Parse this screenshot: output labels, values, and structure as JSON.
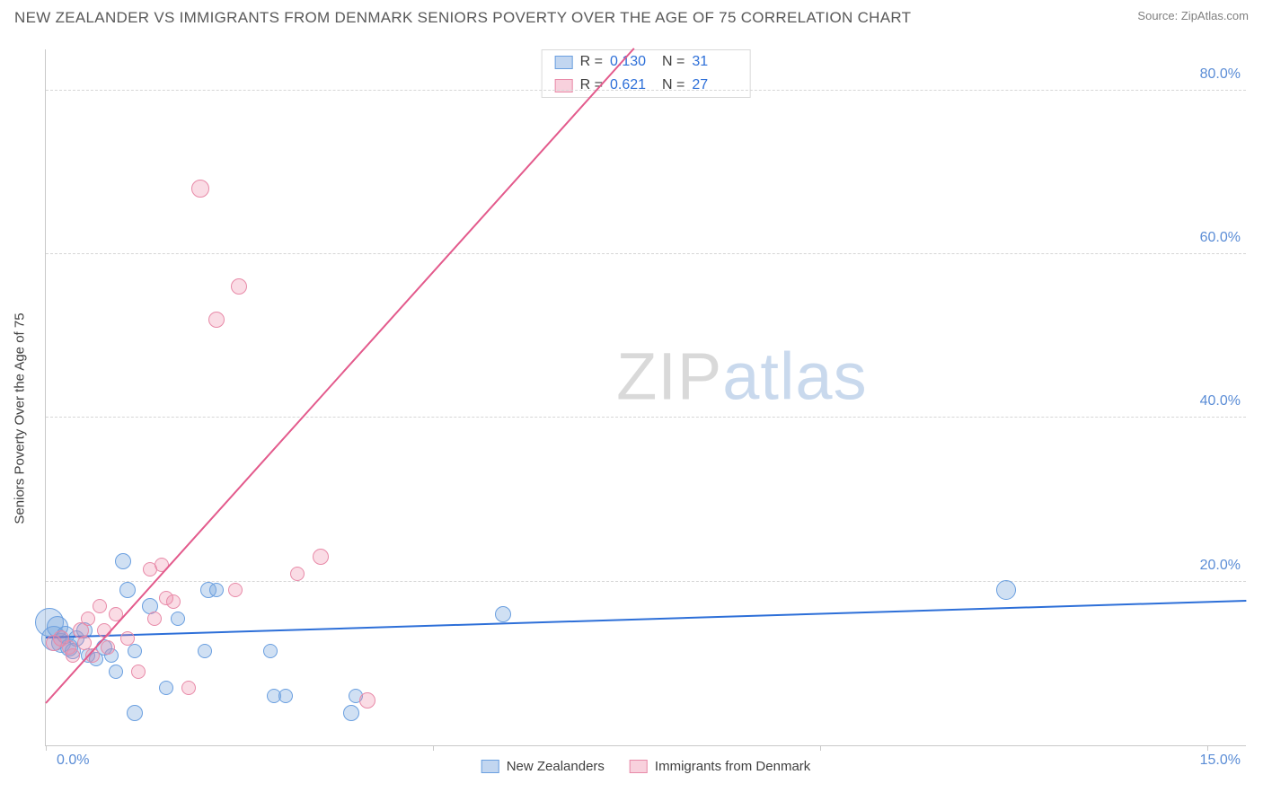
{
  "title": "NEW ZEALANDER VS IMMIGRANTS FROM DENMARK SENIORS POVERTY OVER THE AGE OF 75 CORRELATION CHART",
  "source_label": "Source:",
  "source_name": "ZipAtlas.com",
  "y_axis_label": "Seniors Poverty Over the Age of 75",
  "watermark_a": "ZIP",
  "watermark_b": "atlas",
  "chart": {
    "type": "scatter",
    "xlim": [
      0,
      15.5
    ],
    "ylim": [
      0,
      85
    ],
    "x_ticks": [
      0,
      5,
      10,
      15
    ],
    "x_tick_labels": [
      "0.0%",
      "",
      "",
      "15.0%"
    ],
    "y_grid": [
      20,
      40,
      60,
      80
    ],
    "y_tick_labels": [
      "20.0%",
      "40.0%",
      "60.0%",
      "80.0%"
    ],
    "grid_color": "#d6d6d6",
    "axis_color": "#c9c9c9",
    "tick_label_color": "#5b8dd6",
    "background_color": "#ffffff"
  },
  "series": [
    {
      "key": "nz",
      "label": "New Zealanders",
      "fill": "rgba(120,165,222,0.35)",
      "stroke": "#6a9fe0",
      "trend_color": "#2d6fd8",
      "trend": {
        "x1": 0,
        "y1": 13.0,
        "x2": 15.5,
        "y2": 17.5
      },
      "r_value": "0.130",
      "n_value": "31",
      "points": [
        {
          "x": 0.05,
          "y": 15.0,
          "r": 16
        },
        {
          "x": 0.1,
          "y": 13.0,
          "r": 14
        },
        {
          "x": 0.15,
          "y": 14.5,
          "r": 12
        },
        {
          "x": 0.2,
          "y": 12.5,
          "r": 11
        },
        {
          "x": 0.25,
          "y": 13.5,
          "r": 10
        },
        {
          "x": 0.3,
          "y": 12.0,
          "r": 10
        },
        {
          "x": 0.35,
          "y": 11.5,
          "r": 9
        },
        {
          "x": 0.4,
          "y": 13.0,
          "r": 9
        },
        {
          "x": 0.5,
          "y": 14.0,
          "r": 9
        },
        {
          "x": 0.55,
          "y": 11.0,
          "r": 8
        },
        {
          "x": 0.65,
          "y": 10.5,
          "r": 8
        },
        {
          "x": 0.75,
          "y": 12.0,
          "r": 9
        },
        {
          "x": 0.85,
          "y": 11.0,
          "r": 8
        },
        {
          "x": 0.9,
          "y": 9.0,
          "r": 8
        },
        {
          "x": 1.0,
          "y": 22.5,
          "r": 9
        },
        {
          "x": 1.05,
          "y": 19.0,
          "r": 9
        },
        {
          "x": 1.15,
          "y": 11.5,
          "r": 8
        },
        {
          "x": 1.15,
          "y": 4.0,
          "r": 9
        },
        {
          "x": 1.35,
          "y": 17.0,
          "r": 9
        },
        {
          "x": 1.55,
          "y": 7.0,
          "r": 8
        },
        {
          "x": 1.7,
          "y": 15.5,
          "r": 8
        },
        {
          "x": 2.1,
          "y": 19.0,
          "r": 9
        },
        {
          "x": 2.05,
          "y": 11.5,
          "r": 8
        },
        {
          "x": 2.2,
          "y": 19.0,
          "r": 8
        },
        {
          "x": 2.9,
          "y": 11.5,
          "r": 8
        },
        {
          "x": 2.95,
          "y": 6.0,
          "r": 8
        },
        {
          "x": 3.1,
          "y": 6.0,
          "r": 8
        },
        {
          "x": 3.95,
          "y": 4.0,
          "r": 9
        },
        {
          "x": 4.0,
          "y": 6.0,
          "r": 8
        },
        {
          "x": 5.9,
          "y": 16.0,
          "r": 9
        },
        {
          "x": 12.4,
          "y": 19.0,
          "r": 11
        }
      ]
    },
    {
      "key": "dk",
      "label": "Immigrants from Denmark",
      "fill": "rgba(238,140,170,0.30)",
      "stroke": "#e88aa8",
      "trend_color": "#e35a8c",
      "trend": {
        "x1": 0,
        "y1": 5.0,
        "x2": 7.6,
        "y2": 85.0
      },
      "r_value": "0.621",
      "n_value": "27",
      "points": [
        {
          "x": 0.1,
          "y": 12.5,
          "r": 9
        },
        {
          "x": 0.2,
          "y": 13.0,
          "r": 9
        },
        {
          "x": 0.3,
          "y": 12.0,
          "r": 8
        },
        {
          "x": 0.35,
          "y": 11.0,
          "r": 8
        },
        {
          "x": 0.45,
          "y": 14.0,
          "r": 9
        },
        {
          "x": 0.5,
          "y": 12.5,
          "r": 8
        },
        {
          "x": 0.55,
          "y": 15.5,
          "r": 8
        },
        {
          "x": 0.6,
          "y": 11.0,
          "r": 8
        },
        {
          "x": 0.7,
          "y": 17.0,
          "r": 8
        },
        {
          "x": 0.75,
          "y": 14.0,
          "r": 8
        },
        {
          "x": 0.8,
          "y": 12.0,
          "r": 8
        },
        {
          "x": 0.9,
          "y": 16.0,
          "r": 8
        },
        {
          "x": 1.05,
          "y": 13.0,
          "r": 8
        },
        {
          "x": 1.2,
          "y": 9.0,
          "r": 8
        },
        {
          "x": 1.35,
          "y": 21.5,
          "r": 8
        },
        {
          "x": 1.4,
          "y": 15.5,
          "r": 8
        },
        {
          "x": 1.5,
          "y": 22.0,
          "r": 8
        },
        {
          "x": 1.55,
          "y": 18.0,
          "r": 8
        },
        {
          "x": 1.65,
          "y": 17.5,
          "r": 8
        },
        {
          "x": 1.85,
          "y": 7.0,
          "r": 8
        },
        {
          "x": 2.0,
          "y": 68.0,
          "r": 10
        },
        {
          "x": 2.2,
          "y": 52.0,
          "r": 9
        },
        {
          "x": 2.45,
          "y": 19.0,
          "r": 8
        },
        {
          "x": 2.5,
          "y": 56.0,
          "r": 9
        },
        {
          "x": 3.25,
          "y": 21.0,
          "r": 8
        },
        {
          "x": 3.55,
          "y": 23.0,
          "r": 9
        },
        {
          "x": 4.15,
          "y": 5.5,
          "r": 9
        }
      ]
    }
  ],
  "legend_top": [
    {
      "swatch_fill": "rgba(120,165,222,0.45)",
      "swatch_stroke": "#6a9fe0",
      "r_label": "R =",
      "r": "0.130",
      "n_label": "N =",
      "n": "31"
    },
    {
      "swatch_fill": "rgba(238,140,170,0.40)",
      "swatch_stroke": "#e88aa8",
      "r_label": "R =",
      "r": "0.621",
      "n_label": "N =",
      "n": "27"
    }
  ],
  "legend_bottom": [
    {
      "swatch_fill": "rgba(120,165,222,0.45)",
      "swatch_stroke": "#6a9fe0",
      "label": "New Zealanders"
    },
    {
      "swatch_fill": "rgba(238,140,170,0.40)",
      "swatch_stroke": "#e88aa8",
      "label": "Immigrants from Denmark"
    }
  ]
}
